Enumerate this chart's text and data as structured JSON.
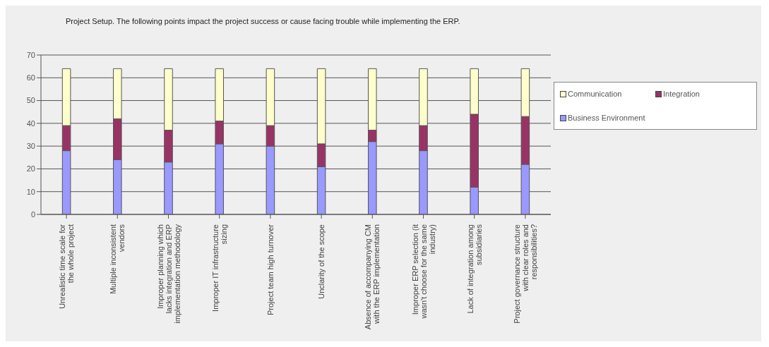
{
  "chart_data": {
    "type": "bar",
    "stacked": true,
    "title": "Project Setup. The following points impact the project success or cause facing trouble while implementing the ERP.",
    "categories": [
      "Unrealistic time scale for the whole project",
      "Multiple inconsistent vendors",
      "Improper planning which lacks integration and ERP implementation methodology",
      "Improper IT infrastructure sizing",
      "Project team high turnover",
      "Unclarity of the scope",
      "Absence of accompanying CM with the ERP implementation",
      "Improper ERP selection (it wasn't choose for the same industry)",
      "Lack of integration among subsidiaries",
      "Project governance structure with clear roles and responsibilities?"
    ],
    "series": [
      {
        "name": "Business Environment",
        "color": "#9999ff",
        "values": [
          28,
          24,
          23,
          31,
          30,
          21,
          32,
          28,
          12,
          22
        ]
      },
      {
        "name": "Integration",
        "color": "#993366",
        "values": [
          11,
          18,
          14,
          10,
          9,
          10,
          5,
          11,
          32,
          21
        ]
      },
      {
        "name": "Communication",
        "color": "#ffffcc",
        "values": [
          25,
          22,
          27,
          23,
          25,
          33,
          27,
          25,
          20,
          21
        ]
      }
    ],
    "ylim": [
      0,
      70
    ],
    "yticks": [
      0,
      10,
      20,
      30,
      40,
      50,
      60,
      70
    ],
    "grid": "y",
    "legend": "right"
  }
}
